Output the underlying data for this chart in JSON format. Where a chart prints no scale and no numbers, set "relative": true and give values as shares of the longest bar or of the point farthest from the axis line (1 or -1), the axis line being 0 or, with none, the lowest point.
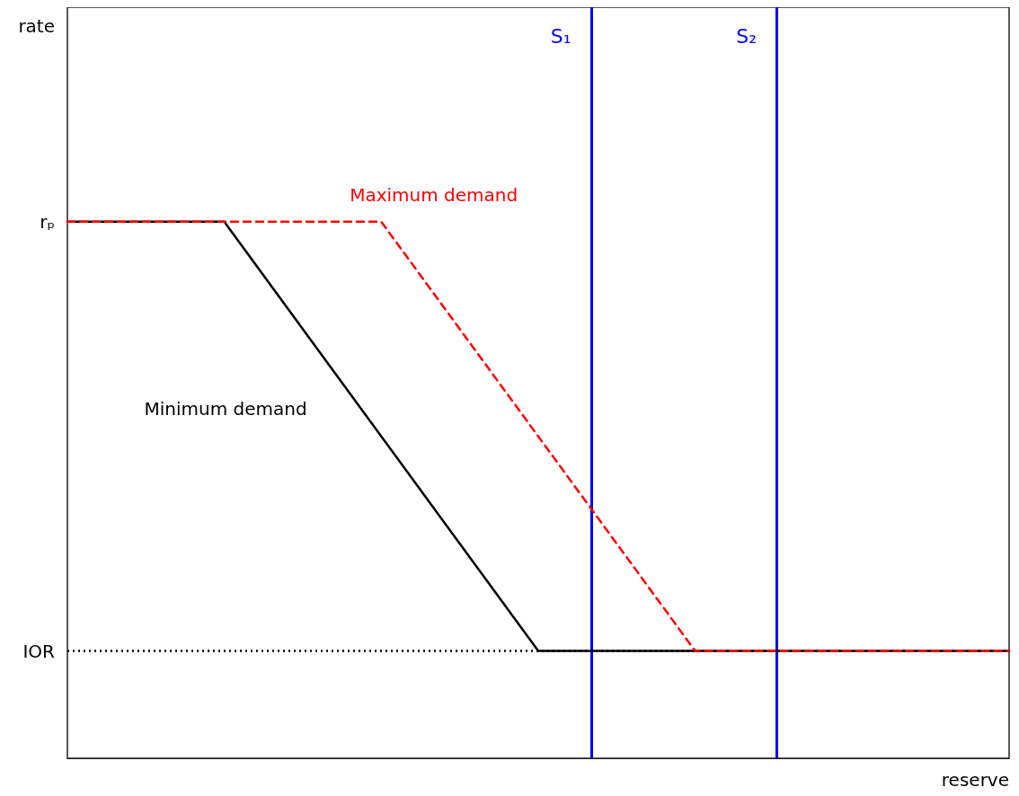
{
  "chart_data": {
    "type": "line",
    "xlabel": "reserve",
    "relative": true,
    "categories": [
      null,
      null,
      null,
      null,
      null,
      null,
      null
    ],
    "legend": false,
    "annotations": [
      "rate",
      "rₚ",
      "IOR",
      "S₁",
      "S₂"
    ],
    "series": [
      {
        "name": "Minimum demand",
        "color": "#000000",
        "line_style": "solid",
        "values": [
          1,
          1,
          0.6,
          0.2,
          0.2,
          0.2,
          0.2
        ]
      },
      {
        "name": "Maximum demand",
        "color": "#ff0000",
        "line_style": "dashed",
        "values": [
          1,
          1,
          1,
          0.6,
          0.2,
          0.2,
          0.2
        ]
      }
    ],
    "ref_lines": [
      {
        "axis": "y",
        "value": 0.2,
        "color": "#000000",
        "line_style": "dotted"
      }
    ]
  }
}
